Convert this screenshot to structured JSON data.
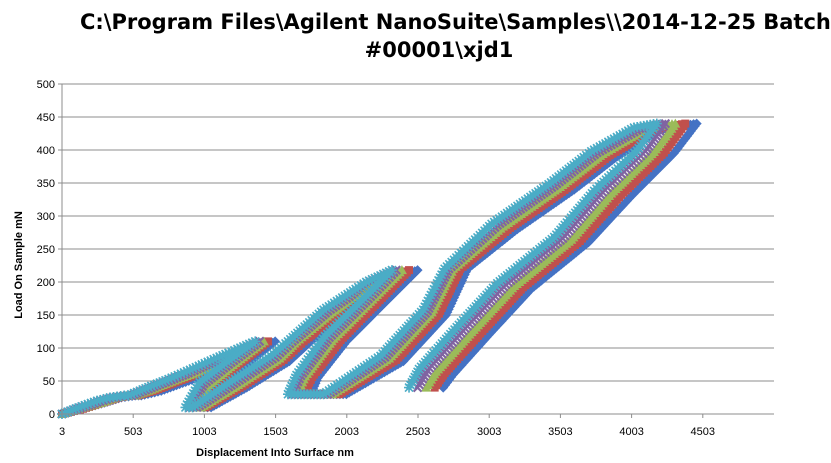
{
  "chart_data": {
    "type": "scatter",
    "title_line1": "C:\\Program Files\\Agilent NanoSuite\\Samples\\\\2014-12-25 Batch",
    "title_line2": "#00001\\xjd1",
    "xlabel": "Displacement  Into Surface nm",
    "ylabel": "Load On Sample mN",
    "xlim": [
      3,
      5003
    ],
    "ylim": [
      0,
      500
    ],
    "x_ticks": [
      3,
      503,
      1003,
      1503,
      2003,
      2503,
      3003,
      3503,
      4003,
      4503
    ],
    "x_tick_labels": [
      "3",
      "503",
      "1003",
      "1503",
      "2003",
      "2503",
      "3003",
      "3503",
      "4003",
      "4503"
    ],
    "y_ticks": [
      0,
      50,
      100,
      150,
      200,
      250,
      300,
      350,
      400,
      450,
      500
    ],
    "y_tick_labels": [
      "0",
      "50",
      "100",
      "150",
      "200",
      "250",
      "300",
      "350",
      "400",
      "450",
      "500"
    ],
    "grid": "horizontal",
    "legend": "none",
    "series": [
      {
        "color": "#4472C4",
        "marker": "diamond",
        "x": [
          3,
          150,
          300,
          420,
          520,
          560,
          700,
          850,
          1000,
          1250,
          1500,
          1300,
          1100,
          1000,
          1050,
          1300,
          1600,
          1750,
          2000,
          2300,
          2500,
          2300,
          2000,
          1800,
          1750,
          2000,
          2400,
          2700,
          2850,
          3200,
          3600,
          3900,
          4200,
          4460,
          4300,
          4000,
          3700,
          3300,
          3000,
          2750,
          2680
        ],
        "y": [
          0,
          8,
          17,
          25,
          28,
          28,
          35,
          47,
          58,
          82,
          110,
          75,
          40,
          10,
          10,
          40,
          80,
          110,
          150,
          200,
          218,
          175,
          110,
          55,
          30,
          30,
          80,
          150,
          220,
          280,
          340,
          390,
          430,
          440,
          395,
          330,
          260,
          190,
          120,
          60,
          40
        ]
      },
      {
        "color": "#C0504D",
        "marker": "square",
        "x": [
          3,
          150,
          300,
          400,
          500,
          530,
          660,
          800,
          950,
          1200,
          1450,
          1250,
          1060,
          960,
          1010,
          1270,
          1560,
          1700,
          1950,
          2250,
          2440,
          2250,
          1960,
          1760,
          1700,
          1950,
          2350,
          2650,
          2800,
          3150,
          3550,
          3850,
          4150,
          4380,
          4230,
          3930,
          3640,
          3240,
          2940,
          2690,
          2620
        ],
        "y": [
          0,
          8,
          18,
          25,
          28,
          28,
          36,
          48,
          60,
          84,
          110,
          76,
          42,
          10,
          10,
          42,
          82,
          110,
          152,
          200,
          218,
          176,
          112,
          56,
          30,
          30,
          82,
          152,
          220,
          282,
          342,
          392,
          430,
          440,
          396,
          332,
          262,
          192,
          122,
          62,
          40
        ]
      },
      {
        "color": "#9BBB59",
        "marker": "triangle",
        "x": [
          3,
          140,
          290,
          380,
          480,
          510,
          630,
          770,
          920,
          1170,
          1420,
          1220,
          1030,
          930,
          980,
          1240,
          1530,
          1650,
          1900,
          2200,
          2390,
          2200,
          1910,
          1710,
          1650,
          1900,
          2300,
          2600,
          2750,
          3100,
          3500,
          3800,
          4100,
          4310,
          4160,
          3860,
          3580,
          3180,
          2880,
          2630,
          2560
        ],
        "y": [
          0,
          9,
          18,
          25,
          28,
          28,
          37,
          49,
          61,
          85,
          110,
          77,
          44,
          10,
          10,
          44,
          84,
          110,
          154,
          200,
          218,
          177,
          114,
          57,
          30,
          30,
          84,
          154,
          220,
          284,
          344,
          394,
          432,
          440,
          397,
          334,
          264,
          194,
          124,
          64,
          40
        ]
      },
      {
        "color": "#8064A2",
        "marker": "x",
        "x": [
          3,
          130,
          270,
          360,
          460,
          490,
          610,
          750,
          890,
          1140,
          1390,
          1190,
          1000,
          900,
          950,
          1210,
          1500,
          1620,
          1870,
          2170,
          2350,
          2170,
          1880,
          1680,
          1620,
          1870,
          2270,
          2570,
          2720,
          3060,
          3460,
          3760,
          4060,
          4240,
          4100,
          3800,
          3520,
          3120,
          2820,
          2570,
          2500
        ],
        "y": [
          0,
          9,
          19,
          25,
          28,
          28,
          38,
          50,
          62,
          86,
          110,
          78,
          46,
          10,
          10,
          46,
          86,
          110,
          156,
          200,
          218,
          178,
          116,
          58,
          30,
          30,
          86,
          156,
          220,
          286,
          346,
          396,
          432,
          440,
          398,
          336,
          266,
          196,
          126,
          66,
          40
        ]
      },
      {
        "color": "#4BACC6",
        "marker": "star",
        "x": [
          3,
          120,
          250,
          340,
          440,
          470,
          590,
          730,
          860,
          1110,
          1360,
          1160,
          970,
          870,
          920,
          1180,
          1470,
          1590,
          1840,
          2140,
          2320,
          2140,
          1850,
          1650,
          1590,
          1840,
          2240,
          2540,
          2690,
          3020,
          3420,
          3720,
          4020,
          4180,
          4040,
          3740,
          3460,
          3060,
          2760,
          2510,
          2440
        ],
        "y": [
          0,
          10,
          20,
          25,
          28,
          28,
          39,
          51,
          63,
          87,
          110,
          79,
          48,
          10,
          10,
          48,
          88,
          110,
          158,
          200,
          218,
          179,
          118,
          59,
          30,
          30,
          88,
          158,
          220,
          288,
          348,
          398,
          434,
          440,
          399,
          338,
          268,
          198,
          128,
          68,
          40
        ]
      }
    ]
  }
}
